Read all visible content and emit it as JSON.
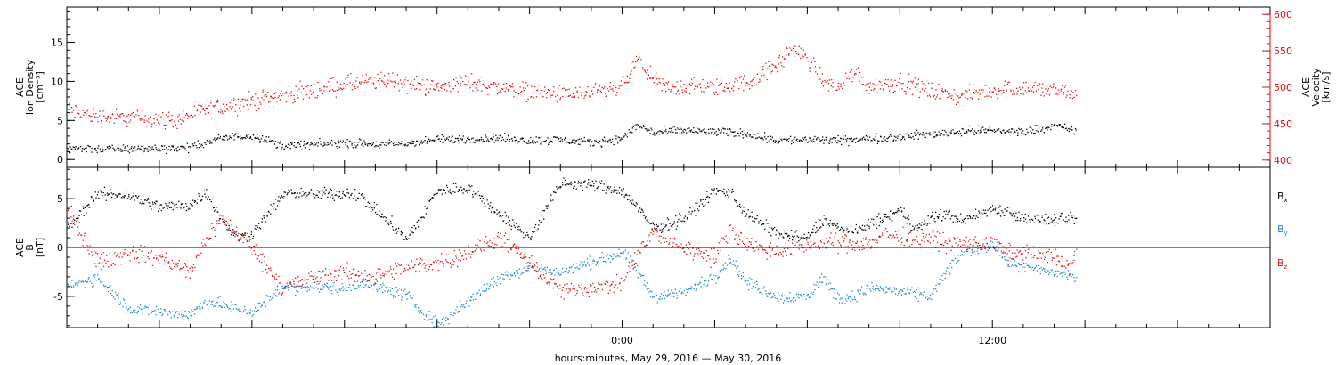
{
  "chart_data": [
    {
      "type": "scatter",
      "panel": "top",
      "left_axis": {
        "label_lines": [
          "ACE",
          "Ion Density",
          "[cm⁻³]"
        ],
        "ticks": [
          0,
          5,
          10,
          15
        ],
        "ylim": [
          -1,
          19.5
        ],
        "color": "#000000"
      },
      "right_axis": {
        "label_lines": [
          "ACE",
          "Velocity",
          "[km/s]"
        ],
        "ticks": [
          400,
          450,
          500,
          550,
          600
        ],
        "ylim": [
          390,
          610
        ],
        "color": "#dd1111"
      },
      "series": [
        {
          "key": "velocity",
          "axis": "right",
          "color": "#dd1111",
          "anchors_hours": [
            -18,
            -17,
            -15.5,
            -14.5,
            -13.5,
            -12,
            -11,
            -10,
            -9,
            -8,
            -7.5,
            -7,
            -6,
            -5,
            -4,
            -3,
            -2,
            -1,
            0,
            0.5,
            1,
            1.5,
            2,
            3,
            4,
            5,
            5.5,
            6,
            6.5,
            7,
            7.5,
            8,
            9,
            10,
            11,
            12,
            13,
            14,
            14.5,
            15
          ],
          "anchors_values": [
            470,
            460,
            458,
            455,
            470,
            482,
            490,
            496,
            505,
            508,
            512,
            505,
            500,
            508,
            500,
            495,
            490,
            492,
            500,
            540,
            510,
            498,
            502,
            500,
            506,
            530,
            555,
            540,
            510,
            500,
            522,
            502,
            508,
            495,
            487,
            497,
            500,
            496,
            492,
            490
          ],
          "scatter_amp": 18
        },
        {
          "key": "density",
          "axis": "left",
          "color": "#000000",
          "anchors_hours": [
            -18,
            -16,
            -14,
            -13,
            -12,
            -11.5,
            -11,
            -10,
            -9,
            -8,
            -7,
            -6,
            -5,
            -4,
            -3,
            -2,
            -1,
            0,
            0.5,
            1,
            2,
            3,
            4,
            5,
            6,
            7,
            8,
            9,
            10,
            11,
            12,
            13,
            14,
            15
          ],
          "anchors_values": [
            1.5,
            1.4,
            1.6,
            2.8,
            3.2,
            2.5,
            1.8,
            2.0,
            2.2,
            2.0,
            2.1,
            2.6,
            2.7,
            2.8,
            2.5,
            2.6,
            2.2,
            2.8,
            4.5,
            3.5,
            3.8,
            3.6,
            3.4,
            2.5,
            2.6,
            2.5,
            2.7,
            3.0,
            3.3,
            3.7,
            3.8,
            3.6,
            4.4,
            3.4
          ],
          "scatter_amp": 0.8
        }
      ]
    },
    {
      "type": "scatter",
      "panel": "bottom",
      "left_axis": {
        "label_lines": [
          "ACE",
          "B",
          "[nT]"
        ],
        "ticks": [
          -5,
          0,
          5
        ],
        "ylim": [
          -8.2,
          8.2
        ],
        "color": "#000000"
      },
      "zero_line": true,
      "legend": [
        {
          "name": "B",
          "sub": "x",
          "color": "#000000"
        },
        {
          "name": "B",
          "sub": "y",
          "color": "#1f86d0"
        },
        {
          "name": "B",
          "sub": "z",
          "color": "#dd1111"
        }
      ],
      "series": [
        {
          "key": "bx",
          "color": "#000000",
          "anchors_hours": [
            -18,
            -17,
            -16,
            -15,
            -14,
            -13.5,
            -13,
            -12.5,
            -12,
            -11,
            -10,
            -9,
            -8.5,
            -8,
            -7.5,
            -7,
            -6,
            -5,
            -4,
            -3,
            -2,
            -1,
            0,
            0.5,
            1,
            2,
            2.5,
            3,
            3.5,
            4,
            5,
            6,
            6.5,
            7,
            7.5,
            8,
            8.5,
            9,
            9.5,
            10,
            10.5,
            11,
            12,
            12.5,
            13,
            14,
            14.5,
            15
          ],
          "anchors_values": [
            2.0,
            5.5,
            5.4,
            4.2,
            4.4,
            5.8,
            3.0,
            1.0,
            1.5,
            5.5,
            5.5,
            5.6,
            5.3,
            3.8,
            2.5,
            0.8,
            5.8,
            6.2,
            3.5,
            1.0,
            6.6,
            6.5,
            5.8,
            4.0,
            2.0,
            3.0,
            4.5,
            5.8,
            5.8,
            3.5,
            1.5,
            1.0,
            3.0,
            2.0,
            1.5,
            2.5,
            3.0,
            3.8,
            2.0,
            3.0,
            3.5,
            2.8,
            4.0,
            3.8,
            3.0,
            2.8,
            3.0,
            3.2
          ],
          "scatter_amp": 0.9
        },
        {
          "key": "by",
          "color": "#1f86d0",
          "anchors_hours": [
            -18,
            -17,
            -16,
            -15,
            -14,
            -13.5,
            -13,
            -12,
            -11,
            -10,
            -9,
            -8.5,
            -8,
            -7,
            -6.5,
            -6,
            -5,
            -4,
            -3,
            -2,
            -1,
            0,
            0.5,
            1,
            2,
            3,
            3.5,
            4,
            5,
            6,
            6.5,
            7,
            7.5,
            8,
            9,
            10,
            10.5,
            11,
            12,
            12.5,
            13,
            14,
            14.5,
            15
          ],
          "anchors_values": [
            -4.0,
            -3.0,
            -6.2,
            -6.5,
            -6.8,
            -5.5,
            -5.8,
            -6.6,
            -4.0,
            -4.0,
            -4.2,
            -3.5,
            -4.0,
            -4.8,
            -6.5,
            -7.8,
            -5.5,
            -3.0,
            -2.0,
            -2.5,
            -1.5,
            -0.5,
            -2.5,
            -5.0,
            -4.5,
            -3.0,
            -1.0,
            -3.5,
            -5.0,
            -5.0,
            -3.0,
            -5.2,
            -5.0,
            -4.0,
            -4.5,
            -5.0,
            -2.5,
            -0.5,
            0.5,
            -1.5,
            -2.0,
            -2.5,
            -2.8,
            -3.5
          ],
          "scatter_amp": 0.9
        },
        {
          "key": "bz",
          "color": "#dd1111",
          "anchors_hours": [
            -18,
            -17,
            -16,
            -15,
            -14,
            -13.5,
            -13,
            -12,
            -11,
            -10,
            -9,
            -8,
            -7,
            -6,
            -5,
            -4,
            -3,
            -2,
            -1,
            0,
            0.5,
            1,
            2,
            3,
            3.5,
            4,
            5,
            6,
            7,
            8,
            8.5,
            9,
            10,
            10.5,
            11,
            12,
            12.5,
            13,
            14,
            14.5,
            15
          ],
          "anchors_values": [
            4.0,
            -1.5,
            -0.5,
            -1.0,
            -2.5,
            1.0,
            3.0,
            0.0,
            -4.0,
            -3.0,
            -2.5,
            -3.0,
            -2.0,
            -1.5,
            -0.5,
            1.0,
            -1.5,
            -4.5,
            -4.0,
            -3.8,
            -0.5,
            1.5,
            0.0,
            -1.0,
            2.0,
            0.5,
            -0.5,
            0.5,
            0.5,
            0.5,
            1.5,
            1.0,
            1.0,
            0.5,
            0.5,
            0.3,
            -0.5,
            -0.5,
            -0.8,
            -2.0,
            2.0
          ],
          "scatter_amp": 1.3
        }
      ]
    }
  ],
  "x_axis": {
    "label": "hours:minutes, May 29, 2016 — May 30, 2016",
    "range_hours": [
      -18.0,
      21.0
    ],
    "data_end_hours": 14.7,
    "major_ticks": [
      {
        "value": 0,
        "label": "0:00"
      },
      {
        "value": 12,
        "label": "12:00"
      }
    ],
    "minor_tick_step_hours": 1
  },
  "colors": {
    "density": "#000000",
    "velocity": "#dd1111",
    "bx": "#000000",
    "by": "#1f86d0",
    "bz": "#dd1111"
  }
}
